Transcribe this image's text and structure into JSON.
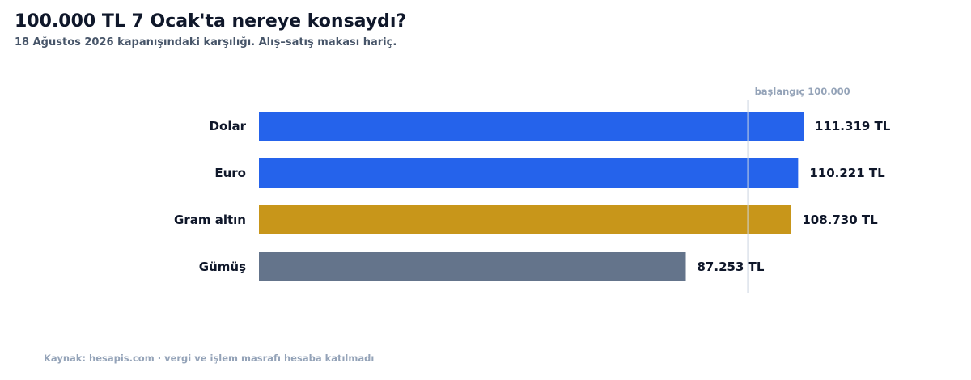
{
  "chart_data": {
    "type": "bar",
    "orientation": "horizontal",
    "title": "100.000 TL 7 Ocak'ta nereye konsaydı?",
    "subtitle": "18 Ağustos 2026 kapanışındaki karşılığı. Alış–satış makası hariç.",
    "categories": [
      "Dolar",
      "Euro",
      "Gram altın",
      "Gümüş"
    ],
    "values": [
      111319,
      110221,
      108730,
      87253
    ],
    "value_labels": [
      "111.319 TL",
      "110.221 TL",
      "108.730 TL",
      "87.253 TL"
    ],
    "colors": [
      "#2563eb",
      "#2563eb",
      "#c8961a",
      "#64748b"
    ],
    "reference_line": {
      "value": 100000,
      "label": "başlangıç 100.000",
      "color": "#cbd5e1"
    },
    "xlim": [
      0,
      115000
    ],
    "grid": false,
    "source": "Kaynak: hesapis.com · vergi ve işlem masrafı hesaba katılmadı"
  }
}
